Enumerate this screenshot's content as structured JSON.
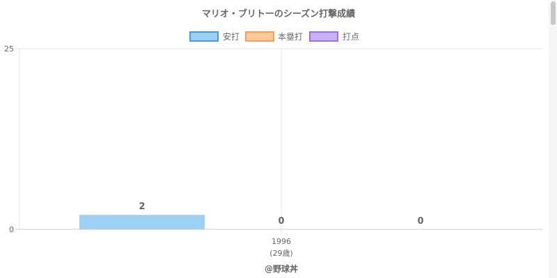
{
  "chart_data": {
    "type": "bar",
    "title": "マリオ・ブリトーのシーズン打撃成績",
    "categories": [
      "1996"
    ],
    "category_sublabels": [
      "(29歳)"
    ],
    "series": [
      {
        "name": "安打",
        "values": [
          2
        ],
        "color": "#9ecff5",
        "border_color": "#3b9fe6"
      },
      {
        "name": "本塁打",
        "values": [
          0
        ],
        "color": "#ffc99a",
        "border_color": "#f7a04f"
      },
      {
        "name": "打点",
        "values": [
          0
        ],
        "color": "#c9b0f7",
        "border_color": "#9b6ef0"
      }
    ],
    "data_labels": [
      "2",
      "0",
      "0"
    ],
    "ylim": [
      0,
      25
    ],
    "y_ticks": [
      "0",
      "25"
    ],
    "grid": true,
    "legend_position": "top",
    "footer": "@野球丼"
  }
}
